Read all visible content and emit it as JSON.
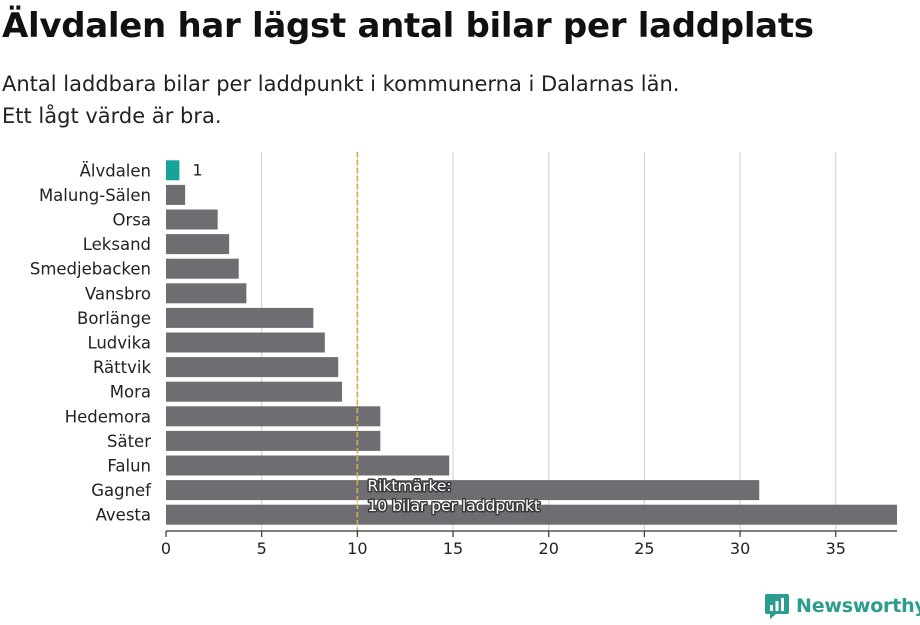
{
  "title": "Älvdalen har lägst antal bilar per laddplats",
  "subtitle_lines": [
    "Antal laddbara bilar per laddpunkt i kommunerna i Dalarnas län.",
    "Ett lågt värde är bra."
  ],
  "logo": {
    "text": "Newsworthy",
    "icon": "newsworthy-logo-icon"
  },
  "colors": {
    "highlight": "#17a398",
    "bar": "#6e6d72",
    "grid": "#d6d6d6",
    "reference": "#e0a84a",
    "brand": "#2a9d8f"
  },
  "chart_data": {
    "type": "bar",
    "orientation": "horizontal",
    "categories": [
      "Älvdalen",
      "Malung-Sälen",
      "Orsa",
      "Leksand",
      "Smedjebacken",
      "Vansbro",
      "Borlänge",
      "Ludvika",
      "Rättvik",
      "Mora",
      "Hedemora",
      "Säter",
      "Falun",
      "Gagnef",
      "Avesta"
    ],
    "values": [
      0.7,
      1.0,
      2.7,
      3.3,
      3.8,
      4.2,
      7.7,
      8.3,
      9.0,
      9.2,
      11.2,
      11.2,
      14.8,
      31.0,
      38.2
    ],
    "highlight_index": 0,
    "data_labels": [
      {
        "category": "Älvdalen",
        "text": "1"
      }
    ],
    "xlim": [
      0,
      38.2
    ],
    "xticks": [
      0,
      5,
      10,
      15,
      20,
      25,
      30,
      35
    ],
    "grid": true,
    "reference_line": {
      "value": 10,
      "label_lines": [
        "Riktmärke:",
        "10 bilar per laddpunkt"
      ]
    }
  }
}
